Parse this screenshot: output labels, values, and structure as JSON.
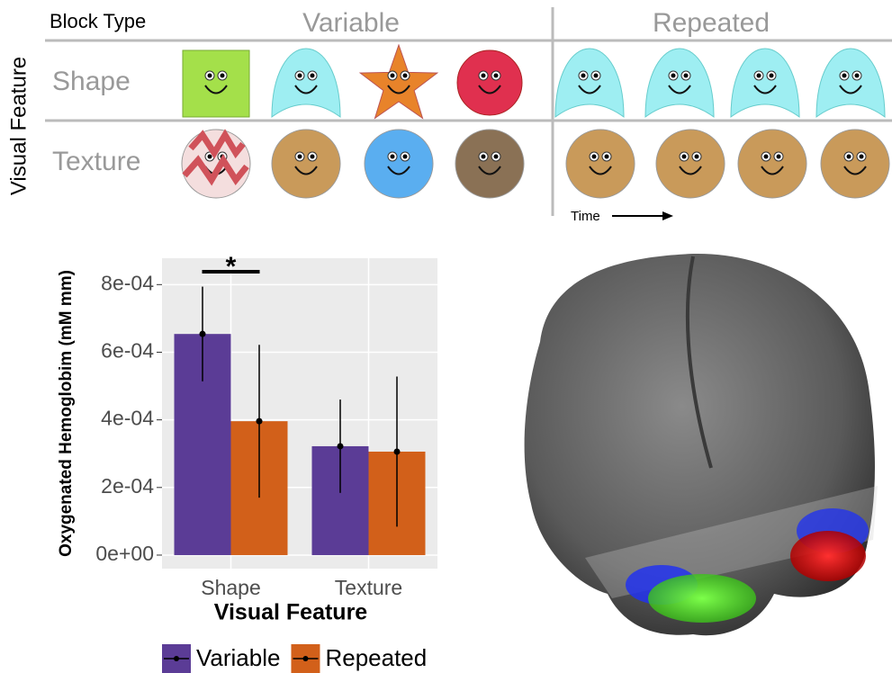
{
  "stimulus_table": {
    "corner": "Block Type",
    "columns": [
      "Variable",
      "Repeated"
    ],
    "rows": [
      "Shape",
      "Texture"
    ],
    "side_label": "Visual Feature",
    "time_label": "Time"
  },
  "chart_data": {
    "type": "bar",
    "y_label": "Oxygenated Hemoglobim (mM mm)",
    "x_label": "Visual Feature",
    "categories": [
      "Shape",
      "Texture"
    ],
    "series": [
      {
        "name": "Variable",
        "color": "#5b3c96",
        "values": [
          0.000654,
          0.000322
        ],
        "errors": [
          0.00014,
          0.000138
        ]
      },
      {
        "name": "Repeated",
        "color": "#d2601a",
        "values": [
          0.000396,
          0.000306
        ],
        "errors": [
          0.000226,
          0.000222
        ]
      }
    ],
    "ylim": [
      -4e-05,
      0.000878
    ],
    "yticks": [
      {
        "value": 0,
        "label": "0e+00"
      },
      {
        "value": 0.0002,
        "label": "2e-04"
      },
      {
        "value": 0.0004,
        "label": "4e-04"
      },
      {
        "value": 0.0006,
        "label": "6e-04"
      },
      {
        "value": 0.0008,
        "label": "8e-04"
      }
    ],
    "annotation": "*",
    "grid": true,
    "legend": "bottom"
  }
}
